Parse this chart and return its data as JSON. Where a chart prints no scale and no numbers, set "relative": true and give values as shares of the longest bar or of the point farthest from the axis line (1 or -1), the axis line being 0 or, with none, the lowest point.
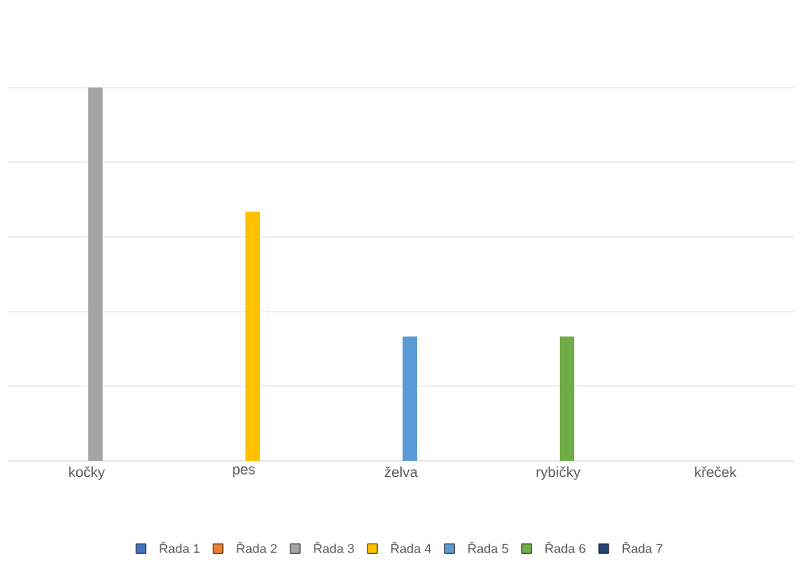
{
  "chart_data": {
    "type": "bar",
    "relative": true,
    "grid": "y",
    "legend": "bottom",
    "categories": [
      "kočky",
      "pes",
      "želva",
      "rybičky",
      "křeček"
    ],
    "series": [
      {
        "name": "Řada 1",
        "color": "#4472c4",
        "values": [
          null,
          null,
          null,
          null,
          null
        ]
      },
      {
        "name": "Řada 2",
        "color": "#ed7d31",
        "values": [
          null,
          null,
          null,
          null,
          null
        ]
      },
      {
        "name": "Řada 3",
        "color": "#a5a5a5",
        "values": [
          1,
          null,
          null,
          null,
          null
        ]
      },
      {
        "name": "Řada 4",
        "color": "#ffc000",
        "values": [
          null,
          0.667,
          null,
          null,
          null
        ]
      },
      {
        "name": "Řada 5",
        "color": "#5b9bd5",
        "values": [
          null,
          null,
          0.333,
          null,
          null
        ]
      },
      {
        "name": "Řada 6",
        "color": "#70ad47",
        "values": [
          null,
          null,
          null,
          0.333,
          null
        ]
      },
      {
        "name": "Řada 7",
        "color": "#264478",
        "values": [
          null,
          null,
          null,
          null,
          null
        ]
      }
    ]
  }
}
